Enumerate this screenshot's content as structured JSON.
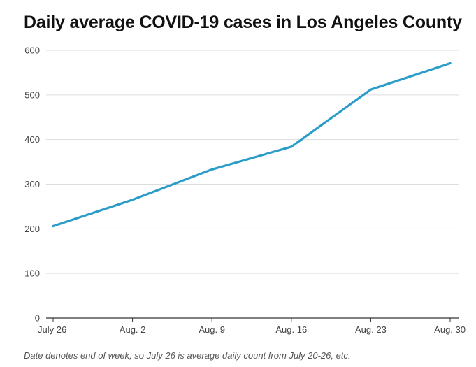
{
  "chart_data": {
    "type": "line",
    "title": "Daily average COVID-19 cases in Los Angeles County",
    "xlabel": "",
    "ylabel": "",
    "categories": [
      "July 26",
      "Aug. 2",
      "Aug. 9",
      "Aug. 16",
      "Aug. 23",
      "Aug. 30"
    ],
    "series": [
      {
        "values": [
          206,
          265,
          333,
          384,
          512,
          571
        ]
      }
    ],
    "ylim": [
      0,
      600
    ],
    "yticks": [
      0,
      100,
      200,
      300,
      400,
      500,
      600
    ],
    "grid": true,
    "line_color": "#2b9dc8",
    "note": "Date denotes end of week, so July 26 is average daily count from July 20-26, etc."
  }
}
